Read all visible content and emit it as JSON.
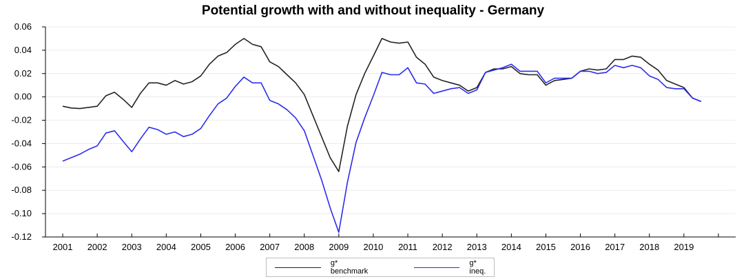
{
  "chart_data": {
    "type": "line",
    "title": "Potential growth with and without inequality - Germany",
    "xlabel": "",
    "ylabel": "",
    "ylim": [
      -0.12,
      0.06
    ],
    "yticks": [
      "0.06",
      "0.04",
      "0.02",
      "0.00",
      "-0.02",
      "-0.04",
      "-0.06",
      "-0.08",
      "-0.10",
      "-0.12"
    ],
    "ytick_values": [
      0.06,
      0.04,
      0.02,
      0.0,
      -0.02,
      -0.04,
      -0.06,
      -0.08,
      -0.1,
      -0.12
    ],
    "xlim": [
      2000.5,
      2020.5
    ],
    "xticks": [
      "2001",
      "2002",
      "2003",
      "2004",
      "2005",
      "2006",
      "2007",
      "2008",
      "2009",
      "2010",
      "2011",
      "2012",
      "2013",
      "2014",
      "2015",
      "2016",
      "2017",
      "2018",
      "2019"
    ],
    "grid": true,
    "legend_position": "bottom",
    "x": [
      2001.0,
      2001.25,
      2001.5,
      2001.75,
      2002.0,
      2002.25,
      2002.5,
      2002.75,
      2003.0,
      2003.25,
      2003.5,
      2003.75,
      2004.0,
      2004.25,
      2004.5,
      2004.75,
      2005.0,
      2005.25,
      2005.5,
      2005.75,
      2006.0,
      2006.25,
      2006.5,
      2006.75,
      2007.0,
      2007.25,
      2007.5,
      2007.75,
      2008.0,
      2008.25,
      2008.5,
      2008.75,
      2009.0,
      2009.25,
      2009.5,
      2009.75,
      2010.0,
      2010.25,
      2010.5,
      2010.75,
      2011.0,
      2011.25,
      2011.5,
      2011.75,
      2012.0,
      2012.25,
      2012.5,
      2012.75,
      2013.0,
      2013.25,
      2013.5,
      2013.75,
      2014.0,
      2014.25,
      2014.5,
      2014.75,
      2015.0,
      2015.25,
      2015.5,
      2015.75,
      2016.0,
      2016.25,
      2016.5,
      2016.75,
      2017.0,
      2017.25,
      2017.5,
      2017.75,
      2018.0,
      2018.25,
      2018.5,
      2018.75,
      2019.0,
      2019.25,
      2019.5
    ],
    "series": [
      {
        "name": "g* benchmark",
        "color": "#222222",
        "values": [
          -0.008,
          -0.0095,
          -0.01,
          -0.009,
          -0.008,
          0.001,
          0.004,
          -0.002,
          -0.009,
          0.003,
          0.012,
          0.012,
          0.01,
          0.014,
          0.011,
          0.013,
          0.018,
          0.028,
          0.035,
          0.038,
          0.045,
          0.05,
          0.045,
          0.043,
          0.03,
          0.026,
          0.019,
          0.012,
          0.002,
          -0.016,
          -0.034,
          -0.052,
          -0.064,
          -0.025,
          0.002,
          0.02,
          0.035,
          0.05,
          0.047,
          0.046,
          0.047,
          0.034,
          0.028,
          0.017,
          0.014,
          0.012,
          0.01,
          0.005,
          0.008,
          0.021,
          0.024,
          0.024,
          0.026,
          0.02,
          0.019,
          0.019,
          0.01,
          0.014,
          0.015,
          0.016,
          0.022,
          0.024,
          0.023,
          0.024,
          0.032,
          0.032,
          0.035,
          0.034,
          0.028,
          0.023,
          0.014,
          0.011,
          0.008,
          -0.001,
          -0.004
        ]
      },
      {
        "name": "g* ineq.",
        "color": "#2b2bf0",
        "values": [
          -0.055,
          -0.052,
          -0.049,
          -0.045,
          -0.042,
          -0.031,
          -0.029,
          -0.038,
          -0.047,
          -0.036,
          -0.026,
          -0.028,
          -0.032,
          -0.03,
          -0.034,
          -0.032,
          -0.027,
          -0.016,
          -0.006,
          -0.001,
          0.009,
          0.017,
          0.012,
          0.012,
          -0.003,
          -0.006,
          -0.011,
          -0.018,
          -0.029,
          -0.05,
          -0.071,
          -0.095,
          -0.116,
          -0.073,
          -0.039,
          -0.018,
          0.001,
          0.021,
          0.019,
          0.019,
          0.025,
          0.012,
          0.011,
          0.003,
          0.005,
          0.007,
          0.008,
          0.003,
          0.006,
          0.021,
          0.023,
          0.025,
          0.028,
          0.022,
          0.022,
          0.022,
          0.012,
          0.016,
          0.016,
          0.016,
          0.022,
          0.022,
          0.02,
          0.021,
          0.027,
          0.025,
          0.027,
          0.025,
          0.018,
          0.015,
          0.008,
          0.007,
          0.007,
          -0.001,
          -0.004
        ]
      }
    ]
  }
}
